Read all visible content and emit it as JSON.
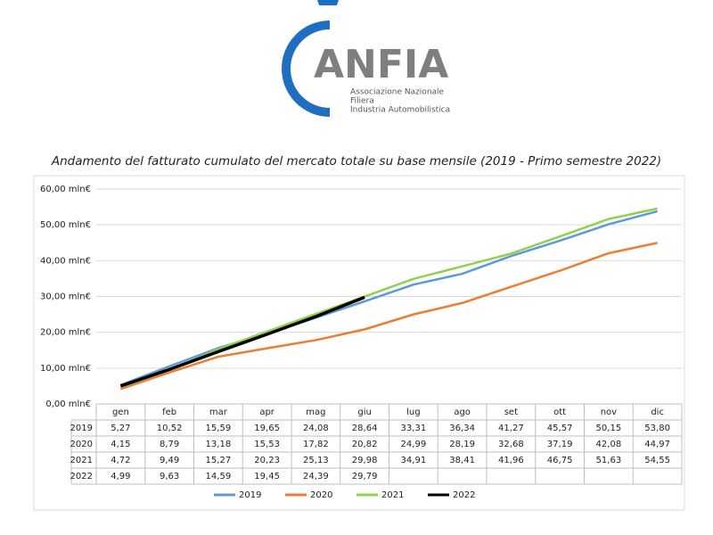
{
  "logo": {
    "name": "ANFIA",
    "lines": [
      "Associazione Nazionale",
      "Filiera",
      "Industria Automobilistica"
    ]
  },
  "chart_data": {
    "type": "line",
    "title": "Andamento del fatturato cumulato del mercato totale su base mensile (2019 - Primo semestre 2022)",
    "categories": [
      "gen",
      "feb",
      "mar",
      "apr",
      "mag",
      "giu",
      "lug",
      "ago",
      "set",
      "ott",
      "nov",
      "dic"
    ],
    "series": [
      {
        "name": "2019",
        "color": "#5b9bd5",
        "values": [
          5.27,
          10.52,
          15.59,
          19.65,
          24.08,
          28.64,
          33.31,
          36.34,
          41.27,
          45.57,
          50.15,
          53.8
        ],
        "value_labels": [
          "5,27",
          "10,52",
          "15,59",
          "19,65",
          "24,08",
          "28,64",
          "33,31",
          "36,34",
          "41,27",
          "45,57",
          "50,15",
          "53,80"
        ]
      },
      {
        "name": "2020",
        "color": "#ed7d31",
        "values": [
          4.15,
          8.79,
          13.18,
          15.53,
          17.82,
          20.82,
          24.99,
          28.19,
          32.68,
          37.19,
          42.08,
          44.97
        ],
        "value_labels": [
          "4,15",
          "8,79",
          "13,18",
          "15,53",
          "17,82",
          "20,82",
          "24,99",
          "28,19",
          "32,68",
          "37,19",
          "42,08",
          "44,97"
        ]
      },
      {
        "name": "2021",
        "color": "#92d050",
        "values": [
          4.72,
          9.49,
          15.27,
          20.23,
          25.13,
          29.98,
          34.91,
          38.41,
          41.96,
          46.75,
          51.63,
          54.55
        ],
        "value_labels": [
          "4,72",
          "9,49",
          "15,27",
          "20,23",
          "25,13",
          "29,98",
          "34,91",
          "38,41",
          "41,96",
          "46,75",
          "51,63",
          "54,55"
        ]
      },
      {
        "name": "2022",
        "color": "#000000",
        "values": [
          4.99,
          9.63,
          14.59,
          19.45,
          24.39,
          29.79,
          null,
          null,
          null,
          null,
          null,
          null
        ],
        "value_labels": [
          "4,99",
          "9,63",
          "14,59",
          "19,45",
          "24,39",
          "29,79",
          null,
          null,
          null,
          null,
          null,
          null
        ]
      }
    ],
    "ylim": [
      0,
      60
    ],
    "yticks": [
      {
        "value": 0,
        "label": "0,00 mln€"
      },
      {
        "value": 10,
        "label": "10,00 mln€"
      },
      {
        "value": 20,
        "label": "20,00 mln€"
      },
      {
        "value": 30,
        "label": "30,00 mln€"
      },
      {
        "value": 40,
        "label": "40,00 mln€"
      },
      {
        "value": 50,
        "label": "50,00 mln€"
      },
      {
        "value": 60,
        "label": "60,00 mln€"
      }
    ],
    "grid": true,
    "legend": "bottom"
  }
}
